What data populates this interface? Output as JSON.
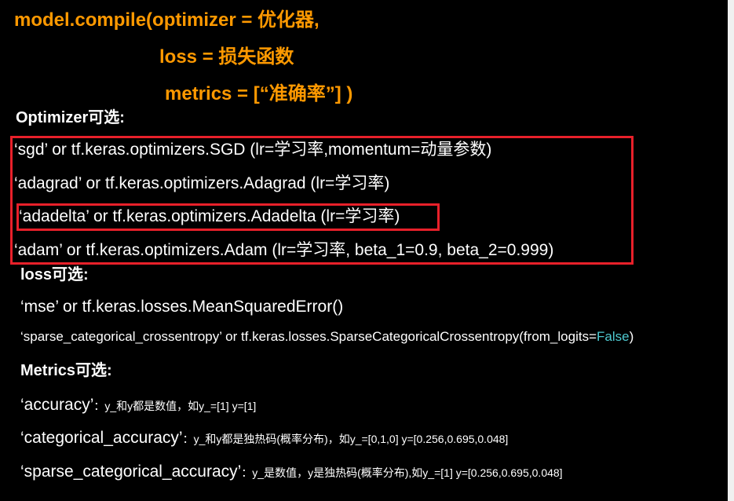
{
  "compile": {
    "line1": "model.compile(optimizer = 优化器,",
    "line2": "loss = 损失函数",
    "line3": "metrics = [“准确率”] )"
  },
  "optimizer": {
    "heading": "Optimizer可选:",
    "items": [
      "‘sgd’ or tf.keras.optimizers.SGD (lr=学习率,momentum=动量参数)",
      "‘adagrad’ or tf.keras.optimizers.Adagrad (lr=学习率)",
      "‘adadelta’ or tf.keras.optimizers.Adadelta (lr=学习率)",
      "‘adam’ or tf.keras.optimizers.Adam (lr=学习率, beta_1=0.9, beta_2=0.999)"
    ]
  },
  "loss": {
    "heading": "loss可选:",
    "item1": "‘mse’ or tf.keras.losses.MeanSquaredError()",
    "item2_prefix": "‘sparse_categorical_crossentropy’ or tf.keras.losses.SparseCategoricalCrossentropy(from_logits=",
    "item2_value": "False",
    "item2_suffix": ")"
  },
  "metrics": {
    "heading": "Metrics可选:",
    "items": [
      {
        "name": "‘accuracy’",
        "desc": "：y_和y都是数值，如y_=[1]  y=[1]"
      },
      {
        "name": "‘categorical_accuracy’",
        "desc": "：y_和y都是独热码(概率分布)，如y_=[0,1,0] y=[0.256,0.695,0.048]"
      },
      {
        "name": "‘sparse_categorical_accuracy’",
        "desc": "：y_是数值，y是独热码(概率分布),如y_=[1] y=[0.256,0.695,0.048]"
      }
    ]
  },
  "colors": {
    "highlight_box": "#e8202a",
    "code_orange": "#ff9900",
    "keyword_false": "#4ec9d0"
  }
}
